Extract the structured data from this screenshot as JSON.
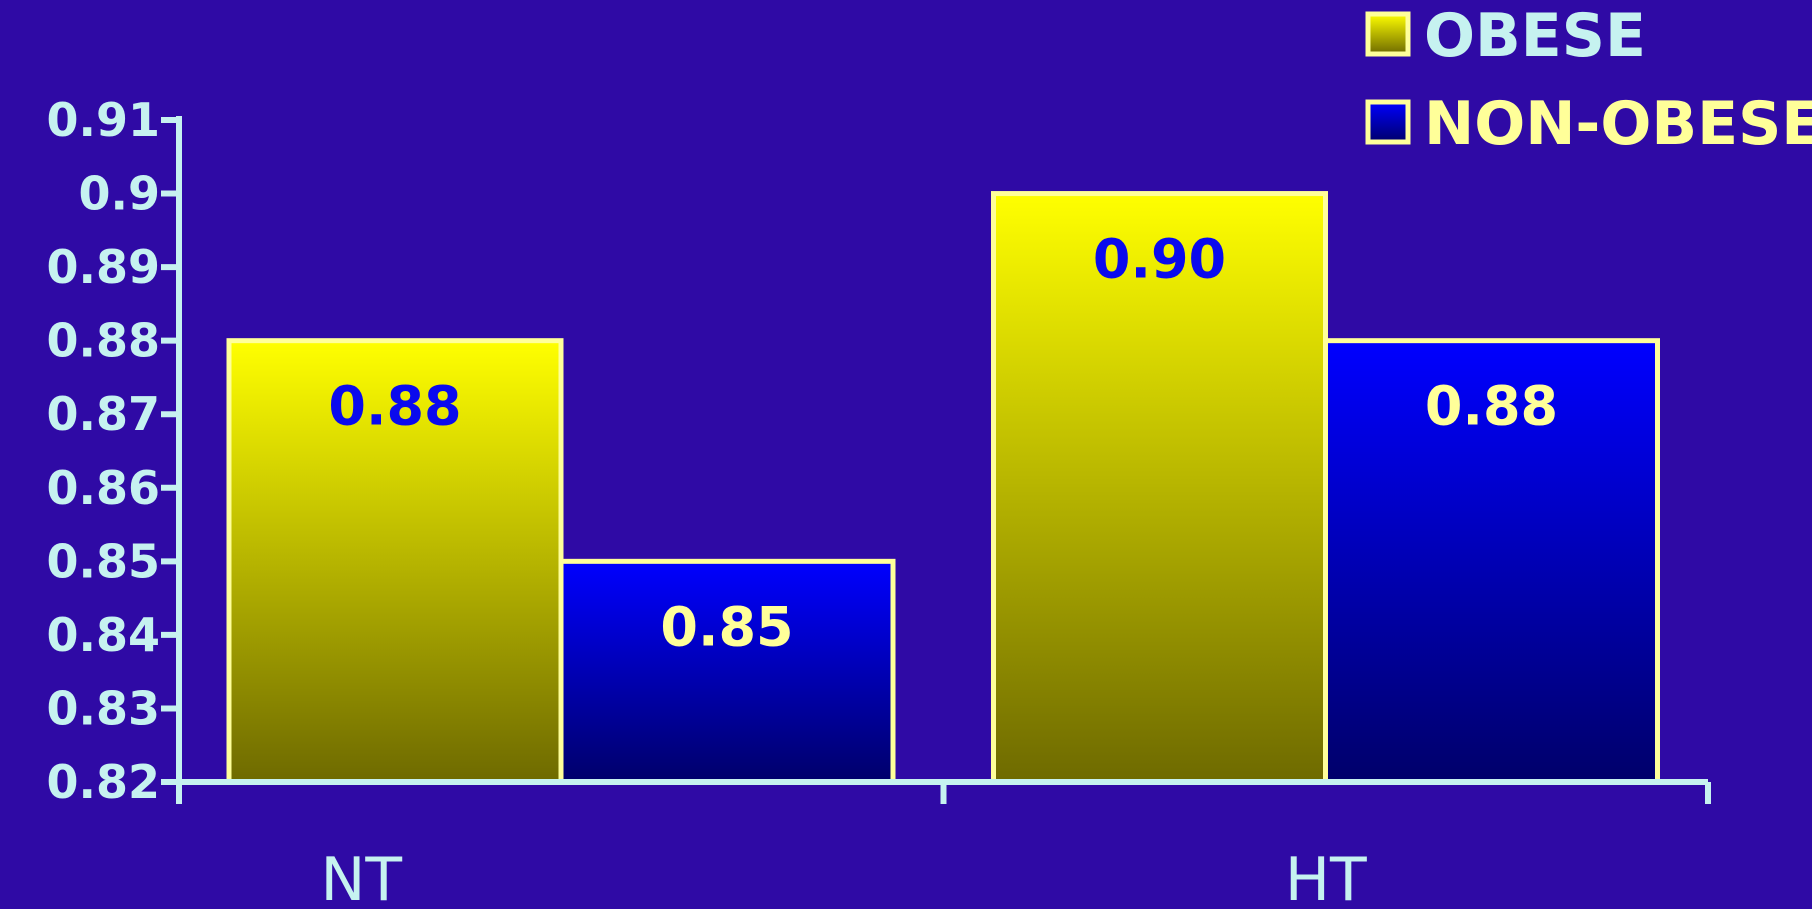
{
  "chart_data": {
    "type": "bar",
    "categories": [
      "NT",
      "HT"
    ],
    "series": [
      {
        "name": "OBESE",
        "values": [
          0.88,
          0.9
        ],
        "labels": [
          "0.88",
          "0.90"
        ]
      },
      {
        "name": "NON-OBESE",
        "values": [
          0.85,
          0.88
        ],
        "labels": [
          "0.85",
          "0.88"
        ]
      }
    ],
    "ylim": [
      0.82,
      0.91
    ],
    "yticks": [
      "0.91",
      "0.9",
      "0.89",
      "0.88",
      "0.87",
      "0.86",
      "0.85",
      "0.84",
      "0.83",
      "0.82"
    ],
    "ytick_values": [
      0.91,
      0.9,
      0.89,
      0.88,
      0.87,
      0.86,
      0.85,
      0.84,
      0.83,
      0.82
    ],
    "legend_position": "top-right",
    "grid": false,
    "colors": {
      "background": "#2f0aa5",
      "axis": "#c6f2f0",
      "tick_text": "#c6f2f0",
      "bar_border": "#ffff9a",
      "obese_top": "#ffff00",
      "obese_bottom": "#6e6a00",
      "nonobese_top": "#0000ff",
      "nonobese_bottom": "#00006a",
      "obese_label": "#0a0aee",
      "nonobese_label": "#ffff99",
      "legend_obese_text": "#c6f2f0",
      "legend_nonobese_text": "#ffff99",
      "category_text": "#c6f2f0"
    }
  }
}
